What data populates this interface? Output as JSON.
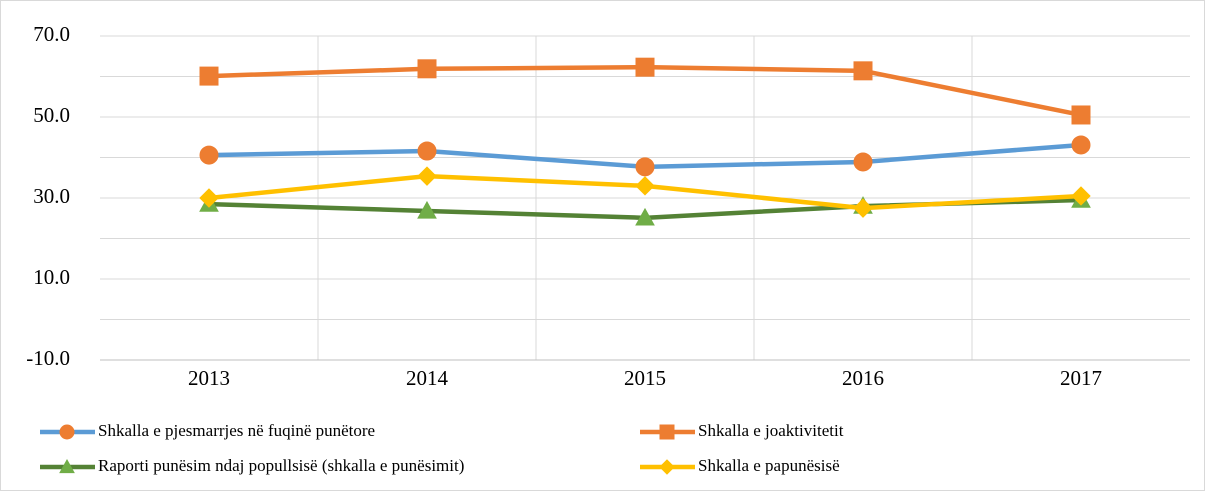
{
  "chart_data": {
    "type": "line",
    "categories": [
      "2013",
      "2014",
      "2015",
      "2016",
      "2017"
    ],
    "series": [
      {
        "name": "Shkalla e pjesmarrjes në fuqinë punëtore",
        "color": "#5b9bd5",
        "marker": "circle",
        "marker_color": "#ed7d31",
        "values": [
          40.6,
          41.6,
          37.7,
          38.9,
          43.1
        ]
      },
      {
        "name": "Shkalla e joaktivitetit",
        "color": "#ed7d31",
        "marker": "square",
        "marker_color": "#ed7d31",
        "values": [
          60.1,
          61.9,
          62.3,
          61.4,
          50.5
        ]
      },
      {
        "name": "Raporti punësim ndaj popullsisë (shkalla e punësimit)",
        "color": "#548235",
        "marker": "triangle",
        "marker_color": "#70ad47",
        "values": [
          28.5,
          26.8,
          25.1,
          28.0,
          29.5
        ]
      },
      {
        "name": "Shkalla e papunësisë",
        "color": "#ffc000",
        "marker": "diamond",
        "marker_color": "#ffc000",
        "values": [
          30.0,
          35.4,
          33.0,
          27.5,
          30.5
        ]
      }
    ],
    "ylim": [
      -10,
      70
    ],
    "yticks": [
      {
        "value": 70,
        "label": "70.0"
      },
      {
        "value": 50,
        "label": "50.0"
      },
      {
        "value": 30,
        "label": "30.0"
      },
      {
        "value": 10,
        "label": "10.0"
      },
      {
        "value": -10,
        "label": "-10.0"
      }
    ],
    "minor_yticks": [
      60,
      40,
      20,
      0
    ],
    "grid": true,
    "legend": "bottom"
  }
}
